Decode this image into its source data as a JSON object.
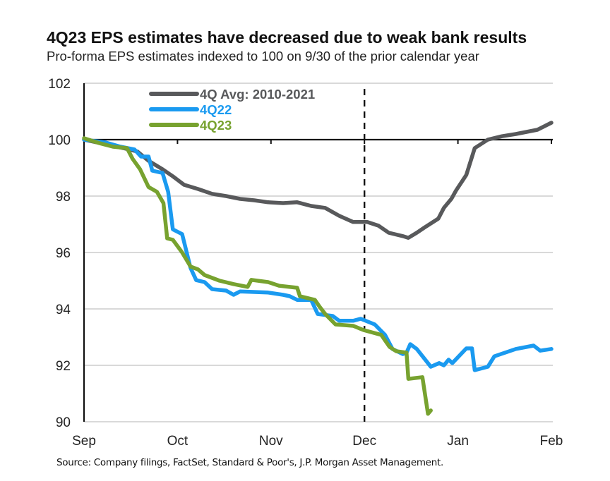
{
  "chart_data": {
    "type": "line",
    "title": "4Q23 EPS estimates have decreased due to weak bank results",
    "subtitle": "Pro-forma EPS estimates indexed to 100 on 9/30 of the prior calendar year",
    "xlabel": "",
    "ylabel": "",
    "x_ticks": [
      "Sep",
      "Oct",
      "Nov",
      "Dec",
      "Jan",
      "Feb"
    ],
    "x_unit": "month index (0 = Sep, 5 = Feb)",
    "xlim": [
      0,
      5
    ],
    "y_ticks": [
      90,
      92,
      94,
      96,
      98,
      100,
      102
    ],
    "ylim": [
      90,
      102
    ],
    "baseline": 100,
    "reference_line": {
      "x": 3,
      "label": "Dec",
      "style": "dashed"
    },
    "grid": true,
    "legend_position": "top-left",
    "series": [
      {
        "name": "4Q Avg: 2010-2021",
        "color": "#58595b",
        "points": [
          [
            0.0,
            100.0
          ],
          [
            0.42,
            99.7
          ],
          [
            0.57,
            99.58
          ],
          [
            0.69,
            99.25
          ],
          [
            0.84,
            98.95
          ],
          [
            0.95,
            98.7
          ],
          [
            1.07,
            98.4
          ],
          [
            1.22,
            98.25
          ],
          [
            1.37,
            98.08
          ],
          [
            1.52,
            98.0
          ],
          [
            1.67,
            97.9
          ],
          [
            1.82,
            97.85
          ],
          [
            1.97,
            97.78
          ],
          [
            2.13,
            97.75
          ],
          [
            2.28,
            97.78
          ],
          [
            2.43,
            97.65
          ],
          [
            2.58,
            97.58
          ],
          [
            2.73,
            97.3
          ],
          [
            2.88,
            97.08
          ],
          [
            3.03,
            97.08
          ],
          [
            3.15,
            96.95
          ],
          [
            3.26,
            96.7
          ],
          [
            3.41,
            96.58
          ],
          [
            3.47,
            96.52
          ],
          [
            3.56,
            96.7
          ],
          [
            3.64,
            96.88
          ],
          [
            3.79,
            97.2
          ],
          [
            3.85,
            97.58
          ],
          [
            3.93,
            97.9
          ],
          [
            3.98,
            98.2
          ],
          [
            4.09,
            98.75
          ],
          [
            4.18,
            99.7
          ],
          [
            4.32,
            100.0
          ],
          [
            4.47,
            100.12
          ],
          [
            4.62,
            100.2
          ],
          [
            4.85,
            100.35
          ],
          [
            5.0,
            100.6
          ]
        ]
      },
      {
        "name": "4Q22",
        "color": "#1a9af0",
        "points": [
          [
            0.0,
            100.0
          ],
          [
            0.23,
            99.9
          ],
          [
            0.39,
            99.75
          ],
          [
            0.54,
            99.65
          ],
          [
            0.61,
            99.4
          ],
          [
            0.69,
            99.4
          ],
          [
            0.73,
            98.9
          ],
          [
            0.84,
            98.82
          ],
          [
            0.9,
            98.15
          ],
          [
            0.95,
            96.82
          ],
          [
            1.05,
            96.65
          ],
          [
            1.14,
            95.45
          ],
          [
            1.2,
            95.02
          ],
          [
            1.29,
            94.95
          ],
          [
            1.37,
            94.7
          ],
          [
            1.52,
            94.65
          ],
          [
            1.6,
            94.5
          ],
          [
            1.67,
            94.62
          ],
          [
            1.97,
            94.58
          ],
          [
            2.13,
            94.5
          ],
          [
            2.2,
            94.45
          ],
          [
            2.28,
            94.32
          ],
          [
            2.43,
            94.32
          ],
          [
            2.5,
            93.82
          ],
          [
            2.66,
            93.75
          ],
          [
            2.73,
            93.58
          ],
          [
            2.88,
            93.58
          ],
          [
            2.96,
            93.65
          ],
          [
            3.11,
            93.45
          ],
          [
            3.22,
            93.08
          ],
          [
            3.3,
            92.58
          ],
          [
            3.41,
            92.4
          ],
          [
            3.45,
            92.45
          ],
          [
            3.49,
            92.75
          ],
          [
            3.56,
            92.58
          ],
          [
            3.71,
            91.95
          ],
          [
            3.8,
            92.08
          ],
          [
            3.85,
            92.0
          ],
          [
            3.9,
            92.2
          ],
          [
            3.94,
            92.08
          ],
          [
            4.09,
            92.6
          ],
          [
            4.15,
            92.6
          ],
          [
            4.18,
            91.83
          ],
          [
            4.32,
            91.95
          ],
          [
            4.39,
            92.32
          ],
          [
            4.62,
            92.58
          ],
          [
            4.81,
            92.7
          ],
          [
            4.88,
            92.52
          ],
          [
            5.0,
            92.58
          ]
        ]
      },
      {
        "name": "4Q23",
        "color": "#77a22f",
        "points": [
          [
            0.0,
            100.05
          ],
          [
            0.16,
            99.88
          ],
          [
            0.31,
            99.75
          ],
          [
            0.46,
            99.7
          ],
          [
            0.52,
            99.32
          ],
          [
            0.6,
            98.95
          ],
          [
            0.69,
            98.32
          ],
          [
            0.78,
            98.15
          ],
          [
            0.85,
            97.75
          ],
          [
            0.89,
            96.5
          ],
          [
            0.95,
            96.45
          ],
          [
            1.05,
            96.0
          ],
          [
            1.14,
            95.5
          ],
          [
            1.22,
            95.4
          ],
          [
            1.29,
            95.2
          ],
          [
            1.45,
            95.0
          ],
          [
            1.6,
            94.88
          ],
          [
            1.75,
            94.78
          ],
          [
            1.79,
            95.03
          ],
          [
            1.97,
            94.95
          ],
          [
            2.09,
            94.82
          ],
          [
            2.28,
            94.75
          ],
          [
            2.31,
            94.45
          ],
          [
            2.47,
            94.32
          ],
          [
            2.52,
            94.08
          ],
          [
            2.58,
            93.82
          ],
          [
            2.69,
            93.45
          ],
          [
            2.88,
            93.4
          ],
          [
            2.99,
            93.25
          ],
          [
            3.18,
            93.08
          ],
          [
            3.27,
            92.65
          ],
          [
            3.34,
            92.5
          ],
          [
            3.45,
            92.45
          ],
          [
            3.47,
            91.52
          ],
          [
            3.62,
            91.58
          ],
          [
            3.68,
            90.28
          ],
          [
            3.71,
            90.4
          ]
        ]
      }
    ]
  },
  "source_note": "Source: Company filings, FactSet, Standard & Poor's, J.P. Morgan Asset Management."
}
